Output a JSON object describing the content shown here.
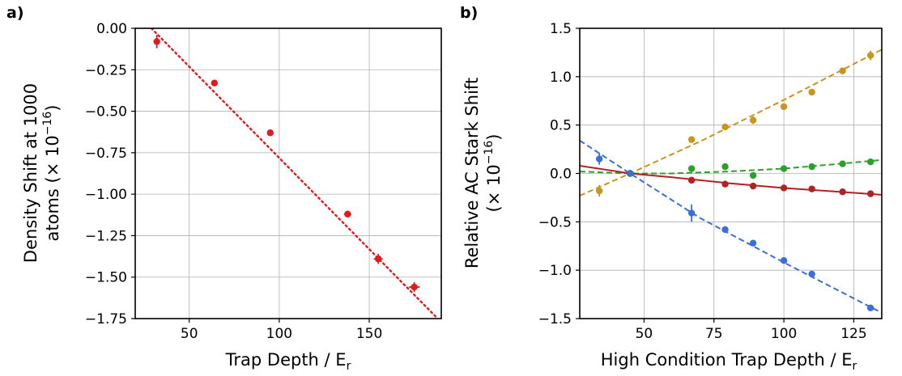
{
  "chart_data": [
    {
      "id": "a",
      "type": "scatter",
      "panel_label": "a)",
      "xlabel": "Trap Depth / E",
      "xlabel_sub": "r",
      "ylabel_line1": "Density Shift at 1000",
      "ylabel_line2": "atoms (× 10",
      "ylabel_sup": "−16",
      "ylabel_end": ")",
      "xlim": [
        20,
        190
      ],
      "ylim": [
        -1.75,
        0.0
      ],
      "xticks": [
        50,
        100,
        150
      ],
      "xtick_labels": [
        "50",
        "100",
        "150"
      ],
      "yticks": [
        0.0,
        -0.25,
        -0.5,
        -0.75,
        -1.0,
        -1.25,
        -1.5,
        -1.75
      ],
      "ytick_labels": [
        "0.00",
        "−0.25",
        "−0.50",
        "−0.75",
        "−1.00",
        "−1.25",
        "−1.50",
        "−1.75"
      ],
      "grid": true,
      "series": [
        {
          "color": "#e31a1c",
          "points": [
            {
              "x": 32,
              "y": -0.08,
              "yerr": 0.04,
              "xerr": 1
            },
            {
              "x": 64,
              "y": -0.33,
              "yerr": 0.015,
              "xerr": 1.2
            },
            {
              "x": 95,
              "y": -0.63,
              "yerr": 0.01,
              "xerr": 1.2
            },
            {
              "x": 138,
              "y": -1.12,
              "yerr": 0.01,
              "xerr": 2
            },
            {
              "x": 155,
              "y": -1.39,
              "yerr": 0.03,
              "xerr": 2.5
            },
            {
              "x": 175,
              "y": -1.56,
              "yerr": 0.03,
              "xerr": 3
            }
          ],
          "fit": {
            "style": "dotted",
            "from": [
              29,
              0.0
            ],
            "to": [
              188,
              -1.75
            ]
          }
        }
      ]
    },
    {
      "id": "b",
      "type": "scatter",
      "panel_label": "b)",
      "xlabel": "High Condition Trap Depth / E",
      "xlabel_sub": "r",
      "ylabel_line1": "Relative AC Stark Shift",
      "ylabel_line2": "(× 10",
      "ylabel_sup": "−16",
      "ylabel_end": ")",
      "xlim": [
        27,
        135
      ],
      "ylim": [
        -1.5,
        1.5
      ],
      "xticks": [
        50,
        75,
        100,
        125
      ],
      "xtick_labels": [
        "50",
        "75",
        "100",
        "125"
      ],
      "yticks": [
        1.5,
        1.0,
        0.5,
        0.0,
        -0.5,
        -1.0,
        -1.5
      ],
      "ytick_labels": [
        "1.5",
        "1.0",
        "0.5",
        "0.0",
        "−0.5",
        "−1.0",
        "−1.5"
      ],
      "grid": true,
      "series": [
        {
          "color": "#c8961e",
          "points": [
            {
              "x": 34,
              "y": -0.18,
              "yerr": 0.06
            },
            {
              "x": 45,
              "y": 0.0,
              "yerr": 0.02
            },
            {
              "x": 67,
              "y": 0.35,
              "yerr": 0.02
            },
            {
              "x": 79,
              "y": 0.48,
              "yerr": 0.02
            },
            {
              "x": 89,
              "y": 0.55,
              "yerr": 0.04
            },
            {
              "x": 100,
              "y": 0.69,
              "yerr": 0.03
            },
            {
              "x": 110,
              "y": 0.84,
              "yerr": 0.03
            },
            {
              "x": 121,
              "y": 1.06,
              "yerr": 0.02
            },
            {
              "x": 131,
              "y": 1.22,
              "yerr": 0.05
            }
          ],
          "fit": {
            "style": "dashed",
            "points": [
              [
                27,
                -0.23
              ],
              [
                45,
                0.0
              ],
              [
                70,
                0.33
              ],
              [
                100,
                0.76
              ],
              [
                135,
                1.28
              ]
            ]
          }
        },
        {
          "color": "#2ca02c",
          "points": [
            {
              "x": 45,
              "y": 0.0,
              "yerr": 0.02
            },
            {
              "x": 67,
              "y": 0.05,
              "yerr": 0.02
            },
            {
              "x": 79,
              "y": 0.07,
              "yerr": 0.02
            },
            {
              "x": 89,
              "y": -0.02,
              "yerr": 0.02
            },
            {
              "x": 100,
              "y": 0.05,
              "yerr": 0.02
            },
            {
              "x": 110,
              "y": 0.07,
              "yerr": 0.02
            },
            {
              "x": 121,
              "y": 0.1,
              "yerr": 0.02
            },
            {
              "x": 131,
              "y": 0.12,
              "yerr": 0.02
            }
          ],
          "fit": {
            "style": "dashed",
            "points": [
              [
                27,
                0.02
              ],
              [
                45,
                0.0
              ],
              [
                60,
                0.0
              ],
              [
                80,
                0.02
              ],
              [
                100,
                0.05
              ],
              [
                120,
                0.1
              ],
              [
                135,
                0.14
              ]
            ]
          }
        },
        {
          "color": "#b22222",
          "points": [
            {
              "x": 45,
              "y": 0.0,
              "yerr": 0.02
            },
            {
              "x": 67,
              "y": -0.07,
              "yerr": 0.02
            },
            {
              "x": 79,
              "y": -0.11,
              "yerr": 0.02
            },
            {
              "x": 89,
              "y": -0.13,
              "yerr": 0.02
            },
            {
              "x": 100,
              "y": -0.15,
              "yerr": 0.02
            },
            {
              "x": 110,
              "y": -0.16,
              "yerr": 0.02
            },
            {
              "x": 121,
              "y": -0.19,
              "yerr": 0.02
            },
            {
              "x": 131,
              "y": -0.21,
              "yerr": 0.02
            }
          ],
          "fit": {
            "style": "solid",
            "points": [
              [
                27,
                0.08
              ],
              [
                45,
                0.0
              ],
              [
                60,
                -0.04
              ],
              [
                80,
                -0.1
              ],
              [
                100,
                -0.15
              ],
              [
                120,
                -0.19
              ],
              [
                135,
                -0.22
              ]
            ]
          }
        },
        {
          "color": "#3a6fd8",
          "points": [
            {
              "x": 34,
              "y": 0.15,
              "yerr": 0.06
            },
            {
              "x": 45,
              "y": 0.0,
              "yerr": 0.02
            },
            {
              "x": 67,
              "y": -0.41,
              "yerr": 0.09
            },
            {
              "x": 79,
              "y": -0.58,
              "yerr": 0.02
            },
            {
              "x": 89,
              "y": -0.72,
              "yerr": 0.02
            },
            {
              "x": 100,
              "y": -0.9,
              "yerr": 0.02
            },
            {
              "x": 110,
              "y": -1.04,
              "yerr": 0.02
            },
            {
              "x": 131,
              "y": -1.39,
              "yerr": 0.02
            }
          ],
          "fit": {
            "style": "dashed",
            "points": [
              [
                27,
                0.34
              ],
              [
                45,
                0.0
              ],
              [
                70,
                -0.46
              ],
              [
                100,
                -0.92
              ],
              [
                135,
                -1.44
              ]
            ]
          }
        }
      ]
    }
  ]
}
